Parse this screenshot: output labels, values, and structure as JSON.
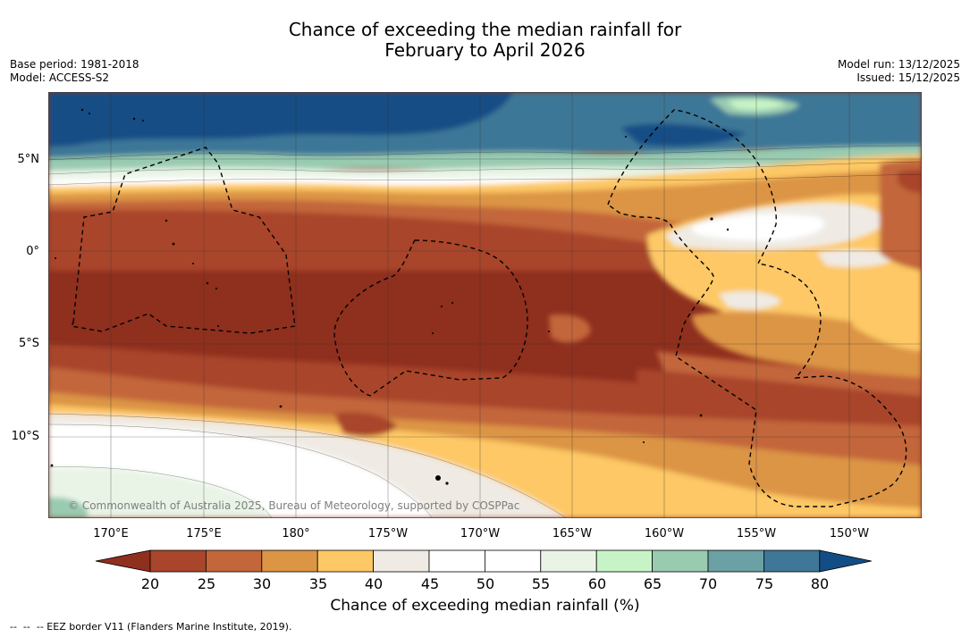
{
  "title": {
    "line1": "Chance of exceeding the median rainfall for",
    "line2": "February to April 2026"
  },
  "meta_left": {
    "base_period": "Base period: 1981-2018",
    "model": "Model: ACCESS-S2"
  },
  "meta_right": {
    "model_run": "Model run: 13/12/2025",
    "issued": "Issued: 15/12/2025"
  },
  "credit": "© Commonwealth of Australia 2025, Bureau of Meteorology, supported by COSPPac",
  "lat_labels": [
    "5°N",
    "0°",
    "5°S",
    "10°S"
  ],
  "lon_labels": [
    "170°E",
    "175°E",
    "180°",
    "175°W",
    "170°W",
    "165°W",
    "160°W",
    "155°W",
    "150°W"
  ],
  "legend": {
    "ticks": [
      "20",
      "25",
      "30",
      "35",
      "40",
      "45",
      "50",
      "55",
      "60",
      "65",
      "70",
      "75",
      "80"
    ],
    "colors": [
      "#8f2f1e",
      "#a9452b",
      "#c3663a",
      "#dc9445",
      "#fdc865",
      "#efebe4",
      "#ffffff",
      "#ffffff",
      "#e9f4e7",
      "#c7f4c6",
      "#99cbb1",
      "#6ba1a4",
      "#3e7797",
      "#134d85"
    ],
    "label": "Chance of exceeding median rainfall (%)"
  },
  "footer": "--  --  -- EEZ border V11 (Flanders Marine Institute, 2019)."
}
